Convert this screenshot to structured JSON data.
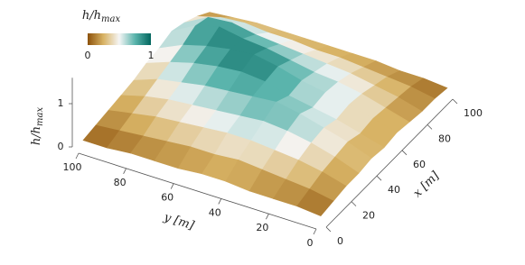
{
  "chart_data": {
    "type": "surface",
    "x_label": "x [m]",
    "y_label": "y [m]",
    "z_label": [
      "h/h",
      "max"
    ],
    "colorbar_label": [
      "h/h",
      "max"
    ],
    "x": [
      0,
      10,
      20,
      30,
      40,
      50,
      60,
      70,
      80,
      90,
      100
    ],
    "y": [
      0,
      10,
      20,
      30,
      40,
      50,
      60,
      70,
      80,
      90,
      100
    ],
    "z": [
      [
        0.05,
        0.1,
        0.15,
        0.15,
        0.2,
        0.15,
        0.2,
        0.15,
        0.1,
        0.1,
        0.05
      ],
      [
        0.1,
        0.2,
        0.3,
        0.35,
        0.4,
        0.3,
        0.35,
        0.3,
        0.25,
        0.2,
        0.1
      ],
      [
        0.1,
        0.25,
        0.4,
        0.5,
        0.55,
        0.45,
        0.5,
        0.45,
        0.35,
        0.25,
        0.1
      ],
      [
        0.1,
        0.3,
        0.45,
        0.6,
        0.7,
        0.55,
        0.6,
        0.55,
        0.45,
        0.3,
        0.15
      ],
      [
        0.15,
        0.35,
        0.5,
        0.65,
        0.8,
        0.65,
        0.7,
        0.6,
        0.5,
        0.35,
        0.15
      ],
      [
        0.15,
        0.3,
        0.5,
        0.6,
        0.75,
        0.8,
        0.85,
        0.7,
        0.55,
        0.35,
        0.15
      ],
      [
        0.1,
        0.3,
        0.45,
        0.55,
        0.7,
        0.85,
        0.95,
        0.8,
        0.6,
        0.4,
        0.15
      ],
      [
        0.1,
        0.25,
        0.4,
        0.5,
        0.65,
        0.8,
        0.9,
        0.85,
        0.65,
        0.4,
        0.15
      ],
      [
        0.1,
        0.2,
        0.35,
        0.45,
        0.55,
        0.7,
        0.8,
        0.95,
        0.75,
        0.45,
        0.15
      ],
      [
        0.05,
        0.15,
        0.25,
        0.35,
        0.45,
        0.55,
        0.65,
        0.8,
        0.7,
        0.4,
        0.1
      ],
      [
        0.05,
        0.1,
        0.15,
        0.2,
        0.25,
        0.35,
        0.4,
        0.5,
        0.4,
        0.25,
        0.05
      ]
    ],
    "xlim": [
      0,
      100
    ],
    "ylim": [
      0,
      100
    ],
    "zlim": [
      0,
      1.6
    ],
    "xticks": [
      0,
      20,
      40,
      60,
      80,
      100
    ],
    "yticks": [
      0,
      20,
      40,
      60,
      80,
      100
    ],
    "zticks": [
      0,
      1
    ],
    "colorbar_ticks": [
      0,
      1
    ],
    "colormap": [
      "#8c510a",
      "#d8b365",
      "#f5f5f5",
      "#5ab4ac",
      "#01665e"
    ]
  }
}
